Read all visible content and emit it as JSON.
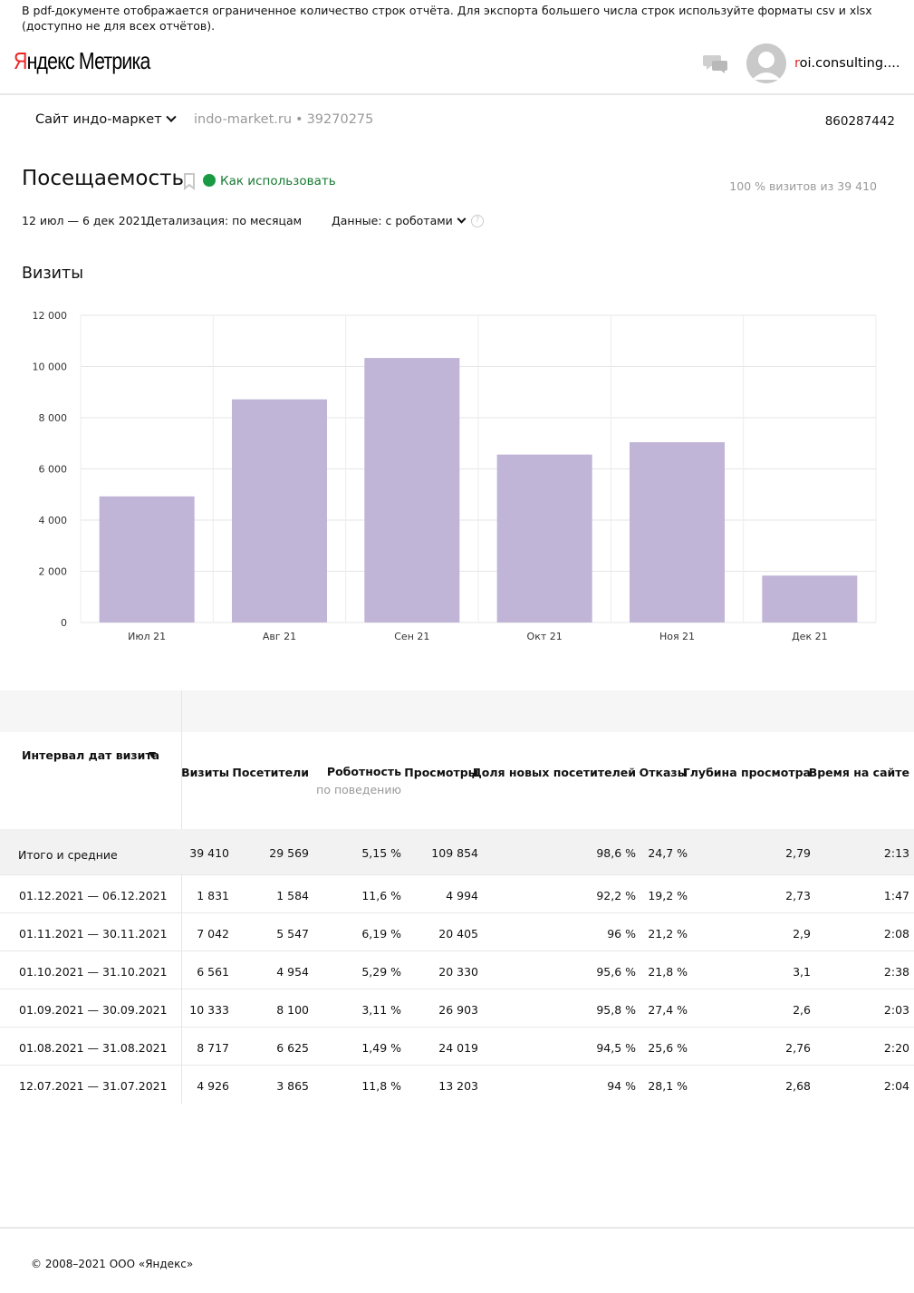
{
  "notice": "В pdf-документе отображается ограниченное количество строк отчёта. Для экспорта большего числа строк используйте форматы csv и xlsx (доступно не для всех отчётов).",
  "header": {
    "logo_first": "Я",
    "logo_rest": "ндекс",
    "logo_second": "Метрика",
    "user_first": "r",
    "user_rest": "oi.consulting....",
    "chat_icon": "chat-icon",
    "avatar_icon": "avatar"
  },
  "site": {
    "name": "Сайт индо-маркет",
    "url": "indo-market.ru",
    "separator": "•",
    "counter": "39270275",
    "account_id": "860287442"
  },
  "report": {
    "title": "Посещаемость",
    "howto": "Как использовать",
    "visits_share": "100 % визитов из 39 410",
    "period": "12 июл — 6 дек 2021",
    "detail": "Детализация: по месяцам",
    "dataset": "Данные: с роботами"
  },
  "chart_data": {
    "type": "bar",
    "title": "Визиты",
    "categories": [
      "Июл 21",
      "Авг 21",
      "Сен 21",
      "Окт 21",
      "Ноя 21",
      "Дек 21"
    ],
    "values": [
      4926,
      8717,
      10333,
      6561,
      7042,
      1831
    ],
    "ylim": [
      0,
      12000
    ],
    "yticks": [
      0,
      2000,
      4000,
      6000,
      8000,
      10000,
      12000
    ],
    "ytick_labels": [
      "0",
      "2 000",
      "4 000",
      "6 000",
      "8 000",
      "10 000",
      "12 000"
    ],
    "grid": true,
    "bar_color": "#c0b4d7"
  },
  "table": {
    "first_header": "Интервал дат визита",
    "headers": [
      "Визиты",
      "Посетители",
      "Роботность",
      "Просмотры",
      "Доля новых посетителей",
      "Отказы",
      "Глубина просмотра",
      "Время на сайте"
    ],
    "robot_sub": "по поведению",
    "total": {
      "label": "Итого и средние",
      "values": [
        "39 410",
        "29 569",
        "5,15 %",
        "109 854",
        "98,6 %",
        "24,7 %",
        "2,79",
        "2:13"
      ]
    },
    "rows": [
      {
        "label": "01.12.2021 — 06.12.2021",
        "values": [
          "1 831",
          "1 584",
          "11,6 %",
          "4 994",
          "92,2 %",
          "19,2 %",
          "2,73",
          "1:47"
        ]
      },
      {
        "label": "01.11.2021 — 30.11.2021",
        "values": [
          "7 042",
          "5 547",
          "6,19 %",
          "20 405",
          "96 %",
          "21,2 %",
          "2,9",
          "2:08"
        ]
      },
      {
        "label": "01.10.2021 — 31.10.2021",
        "values": [
          "6 561",
          "4 954",
          "5,29 %",
          "20 330",
          "95,6 %",
          "21,8 %",
          "3,1",
          "2:38"
        ]
      },
      {
        "label": "01.09.2021 — 30.09.2021",
        "values": [
          "10 333",
          "8 100",
          "3,11 %",
          "26 903",
          "95,8 %",
          "27,4 %",
          "2,6",
          "2:03"
        ]
      },
      {
        "label": "01.08.2021 — 31.08.2021",
        "values": [
          "8 717",
          "6 625",
          "1,49 %",
          "24 019",
          "94,5 %",
          "25,6 %",
          "2,76",
          "2:20"
        ]
      },
      {
        "label": "12.07.2021 — 31.07.2021",
        "values": [
          "4 926",
          "3 865",
          "11,8 %",
          "13 203",
          "94 %",
          "28,1 %",
          "2,68",
          "2:04"
        ]
      }
    ]
  },
  "footer": {
    "copyright": "© 2008–2021 ООО «Яндекс»"
  }
}
